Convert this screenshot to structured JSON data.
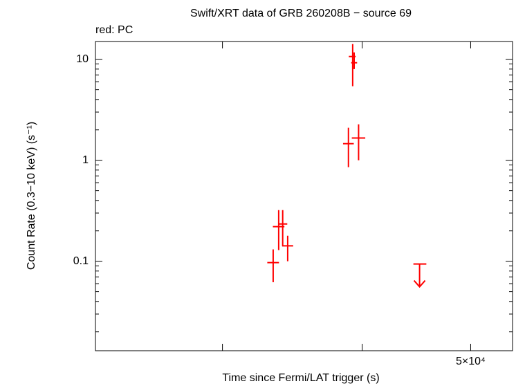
{
  "chart_data": {
    "type": "scatter",
    "title": "Swift/XRT data of GRB 260208B − source 69",
    "subtitle": "red: PC",
    "x_label": "Time since Fermi/LAT trigger (s)",
    "y_label": "Count Rate (0.3−10 keV) (s⁻¹)",
    "xscale": "log",
    "yscale": "log",
    "xlim": [
      23100,
      54500
    ],
    "ylim": [
      0.013,
      15
    ],
    "xticks": [
      {
        "value": 50000,
        "label": "5×10⁴"
      }
    ],
    "xminor_ticks": [
      30000,
      40000
    ],
    "yticks": [
      0.1,
      1,
      10
    ],
    "series": [
      {
        "name": "PC",
        "color": "#ff0000",
        "x": [
          33300,
          33680,
          33960,
          34310,
          38880,
          39220,
          39340,
          39700
        ],
        "x_lo": [
          32900,
          33280,
          33640,
          33920,
          38450,
          38910,
          39100,
          39150
        ],
        "x_hi": [
          33700,
          34080,
          34280,
          34700,
          39310,
          39460,
          39580,
          40250
        ],
        "values": [
          0.097,
          0.22,
          0.234,
          0.142,
          1.46,
          10.65,
          9.24,
          1.66
        ],
        "y_lo": [
          0.062,
          0.129,
          0.142,
          0.1,
          0.854,
          5.41,
          8.0,
          1.0
        ],
        "y_hi": [
          0.131,
          0.321,
          0.321,
          0.179,
          2.1,
          14.15,
          11.7,
          2.27
        ]
      },
      {
        "name": "PC upper limit",
        "color": "#ff0000",
        "upper_limit": true,
        "x": [
          45010
        ],
        "x_lo": [
          44440
        ],
        "x_hi": [
          45640
        ],
        "values": [
          0.094
        ]
      }
    ]
  }
}
